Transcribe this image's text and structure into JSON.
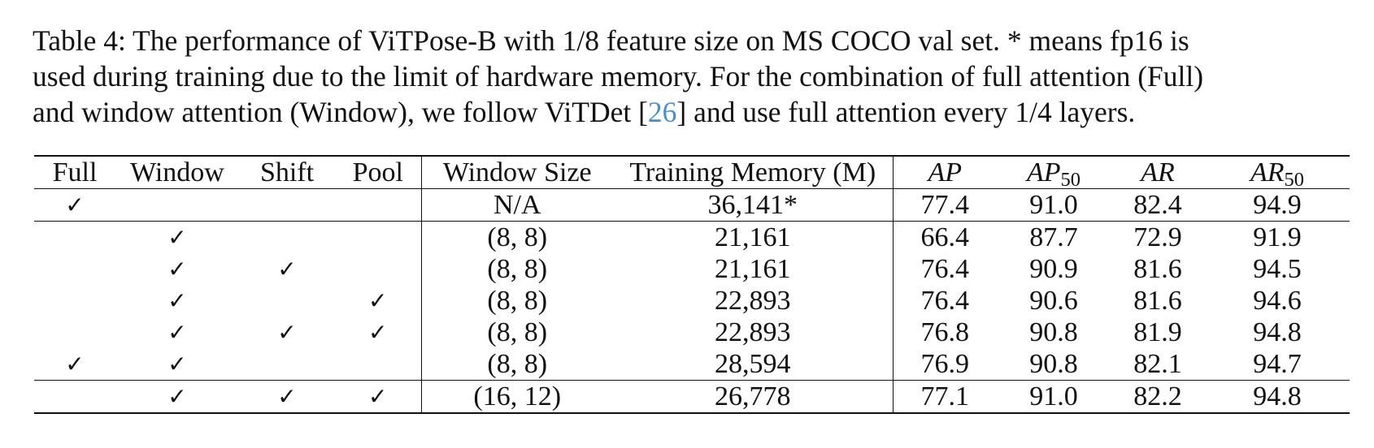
{
  "caption": {
    "part1": "Table 4: The performance of ViTPose-B with 1/8 feature size on MS COCO val set. * means fp16 is",
    "part2": "used during training due to the limit of hardware memory. For the combination of full attention (Full)",
    "part3_before_ref": "and window attention (Window), we follow ViTDet [",
    "ref": "26",
    "part3_after_ref": "] and use full attention every 1/4 layers."
  },
  "check_glyph": "✓",
  "table": {
    "headers": {
      "full": "Full",
      "window": "Window",
      "shift": "Shift",
      "pool": "Pool",
      "window_size": "Window Size",
      "training_memory": "Training Memory (M)",
      "ap": "AP",
      "ap50_base": "AP",
      "ap50_sub": "50",
      "ar": "AR",
      "ar50_base": "AR",
      "ar50_sub": "50"
    },
    "rows": [
      {
        "full": "✓",
        "window": "",
        "shift": "",
        "pool": "",
        "window_size": "N/A",
        "memory": "36,141*",
        "ap": "77.4",
        "ap50": "91.0",
        "ar": "82.4",
        "ar50": "94.9"
      },
      {
        "full": "",
        "window": "✓",
        "shift": "",
        "pool": "",
        "window_size": "(8, 8)",
        "memory": "21,161",
        "ap": "66.4",
        "ap50": "87.7",
        "ar": "72.9",
        "ar50": "91.9"
      },
      {
        "full": "",
        "window": "✓",
        "shift": "✓",
        "pool": "",
        "window_size": "(8, 8)",
        "memory": "21,161",
        "ap": "76.4",
        "ap50": "90.9",
        "ar": "81.6",
        "ar50": "94.5"
      },
      {
        "full": "",
        "window": "✓",
        "shift": "",
        "pool": "✓",
        "window_size": "(8, 8)",
        "memory": "22,893",
        "ap": "76.4",
        "ap50": "90.6",
        "ar": "81.6",
        "ar50": "94.6"
      },
      {
        "full": "",
        "window": "✓",
        "shift": "✓",
        "pool": "✓",
        "window_size": "(8, 8)",
        "memory": "22,893",
        "ap": "76.8",
        "ap50": "90.8",
        "ar": "81.9",
        "ar50": "94.8"
      },
      {
        "full": "✓",
        "window": "✓",
        "shift": "",
        "pool": "",
        "window_size": "(8, 8)",
        "memory": "28,594",
        "ap": "76.9",
        "ap50": "90.8",
        "ar": "82.1",
        "ar50": "94.7"
      },
      {
        "full": "",
        "window": "✓",
        "shift": "✓",
        "pool": "✓",
        "window_size": "(16, 12)",
        "memory": "26,778",
        "ap": "77.1",
        "ap50": "91.0",
        "ar": "82.2",
        "ar50": "94.8"
      }
    ]
  }
}
